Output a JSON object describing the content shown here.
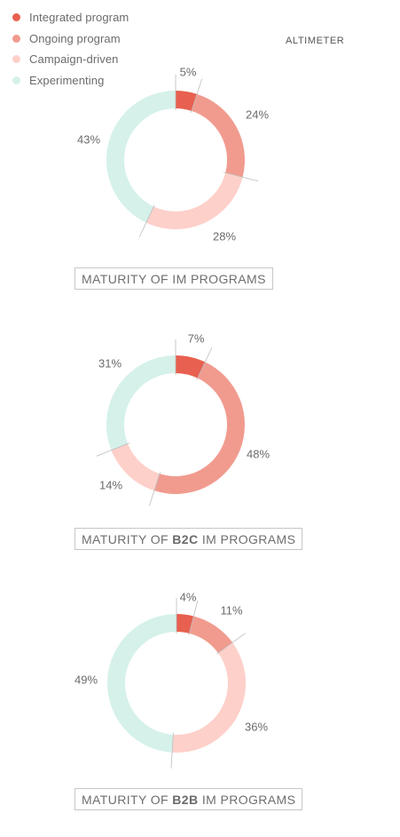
{
  "brand": "ALTIMETER",
  "legend": [
    {
      "label": "Integrated program",
      "color": "#e8604f"
    },
    {
      "label": "Ongoing program",
      "color": "#f19b8f"
    },
    {
      "label": "Campaign-driven",
      "color": "#fdd0c9"
    },
    {
      "label": "Experimenting",
      "color": "#d5f1ea"
    }
  ],
  "captions": [
    {
      "prefix": "MATURITY OF",
      "emphasis": "",
      "suffix": "IM PROGRAMS"
    },
    {
      "prefix": "MATURITY OF",
      "emphasis": "B2C",
      "suffix": "IM PROGRAMS"
    },
    {
      "prefix": "MATURITY OF",
      "emphasis": "B2B",
      "suffix": "IM PROGRAMS"
    }
  ],
  "chart_data": [
    {
      "type": "pie",
      "categories": [
        "Integrated program",
        "Ongoing program",
        "Campaign-driven",
        "Experimenting"
      ],
      "values": [
        5,
        24,
        28,
        43
      ],
      "labels": [
        "5%",
        "24%",
        "28%",
        "43%"
      ],
      "title": "MATURITY OF IM PROGRAMS"
    },
    {
      "type": "pie",
      "categories": [
        "Integrated program",
        "Ongoing program",
        "Campaign-driven",
        "Experimenting"
      ],
      "values": [
        7,
        48,
        14,
        31
      ],
      "labels": [
        "7%",
        "48%",
        "14%",
        "31%"
      ],
      "title": "MATURITY OF B2C IM PROGRAMS"
    },
    {
      "type": "pie",
      "categories": [
        "Integrated program",
        "Ongoing program",
        "Campaign-driven",
        "Experimenting"
      ],
      "values": [
        4,
        11,
        36,
        49
      ],
      "labels": [
        "4%",
        "11%",
        "36%",
        "49%"
      ],
      "title": "MATURITY OF B2B IM PROGRAMS"
    }
  ]
}
